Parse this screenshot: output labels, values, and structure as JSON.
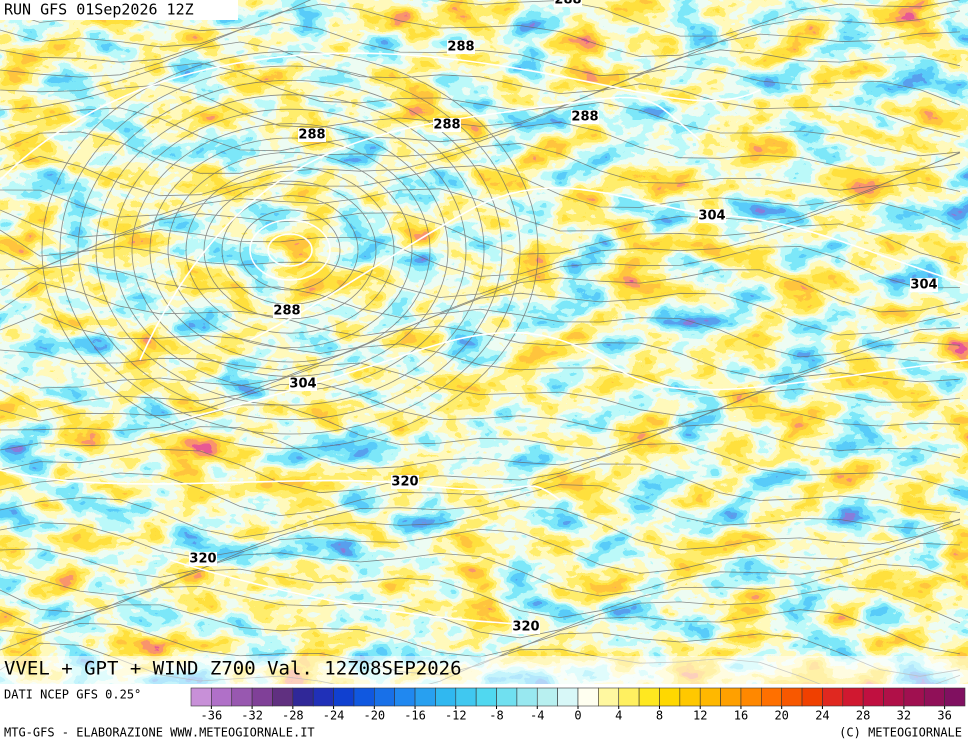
{
  "header": {
    "run": "RUN GFS 01Sep2026 12Z",
    "title": "VVEL + GPT + WIND Z700 Val. 12Z08SEP2026"
  },
  "contour_labels": [
    288,
    288,
    288,
    288,
    288,
    288,
    304,
    304,
    304,
    320,
    320,
    320
  ],
  "colorbar": {
    "source": "DATI NCEP GFS 0.25°",
    "range": [
      -38,
      38
    ],
    "colors": [
      "#c890d8",
      "#b070c8",
      "#9858b0",
      "#804098",
      "#603080",
      "#302898",
      "#2030b8",
      "#1040d0",
      "#1058e0",
      "#1870e8",
      "#2088f0",
      "#28a0f0",
      "#30b8f0",
      "#40c8f0",
      "#50d8f0",
      "#70e0f0",
      "#98e8f0",
      "#b8f0f0",
      "#d8f8f8",
      "#fffff0",
      "#fff8a0",
      "#fff060",
      "#ffe820",
      "#ffd800",
      "#ffc800",
      "#ffb800",
      "#ffa000",
      "#ff8800",
      "#ff7000",
      "#f85800",
      "#f04000",
      "#e02820",
      "#d01830",
      "#c01040",
      "#b01048",
      "#a01050",
      "#901058",
      "#801060"
    ],
    "ticks": [
      -36,
      -32,
      -28,
      -24,
      -20,
      -16,
      -12,
      -8,
      -4,
      0,
      4,
      8,
      12,
      16,
      20,
      24,
      28,
      32,
      36
    ]
  },
  "footer": {
    "left": "MTG-GFS - ELABORAZIONE WWW.METEOGIORNALE.IT",
    "right": "(C) METEOGIORNALE"
  }
}
